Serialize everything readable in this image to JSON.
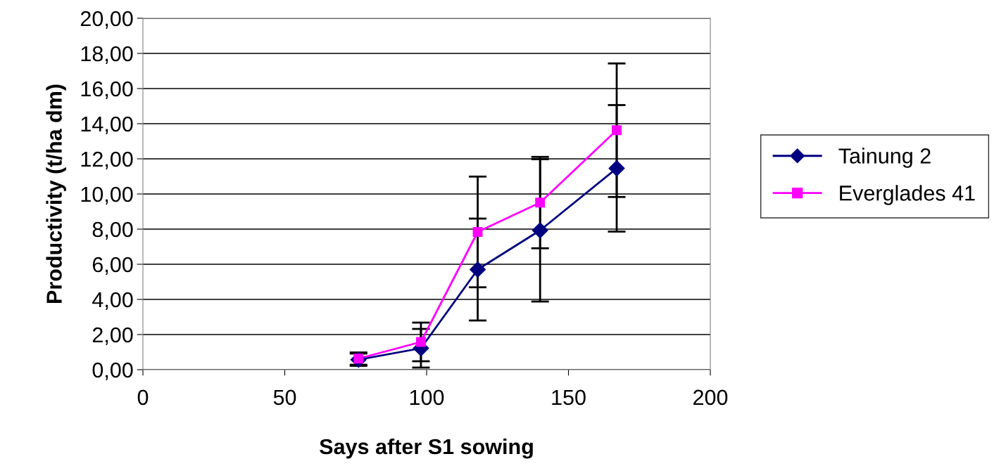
{
  "chart_data": {
    "type": "line",
    "xlabel": "Says after S1 sowing",
    "ylabel": "Productivity (t/ha dm)",
    "x": [
      76,
      98,
      118,
      140,
      167
    ],
    "series": [
      {
        "name": "Tainung 2",
        "color": "#000080",
        "marker": "diamond",
        "values": [
          0.57,
          1.22,
          5.7,
          7.93,
          11.46
        ],
        "errors": [
          0.35,
          1.1,
          2.9,
          4.05,
          3.6
        ]
      },
      {
        "name": "Everglades 41",
        "color": "#ff00ff",
        "marker": "square",
        "values": [
          0.63,
          1.58,
          7.84,
          9.51,
          13.63
        ],
        "errors": [
          0.35,
          1.1,
          3.15,
          2.6,
          3.8
        ]
      }
    ],
    "xlim": [
      0,
      200
    ],
    "xticks": [
      0,
      50,
      100,
      150,
      200
    ],
    "ylim": [
      0,
      20
    ],
    "yticks": [
      {
        "value": 0,
        "label": "0,00"
      },
      {
        "value": 2,
        "label": "2,00"
      },
      {
        "value": 4,
        "label": "4,00"
      },
      {
        "value": 6,
        "label": "6,00"
      },
      {
        "value": 8,
        "label": "8,00"
      },
      {
        "value": 10,
        "label": "10,00"
      },
      {
        "value": 12,
        "label": "12,00"
      },
      {
        "value": 14,
        "label": "14,00"
      },
      {
        "value": 16,
        "label": "16,00"
      },
      {
        "value": 18,
        "label": "18,00"
      },
      {
        "value": 20,
        "label": "20,00"
      }
    ],
    "grid": "y",
    "legend": "right",
    "line_style": "solid"
  }
}
